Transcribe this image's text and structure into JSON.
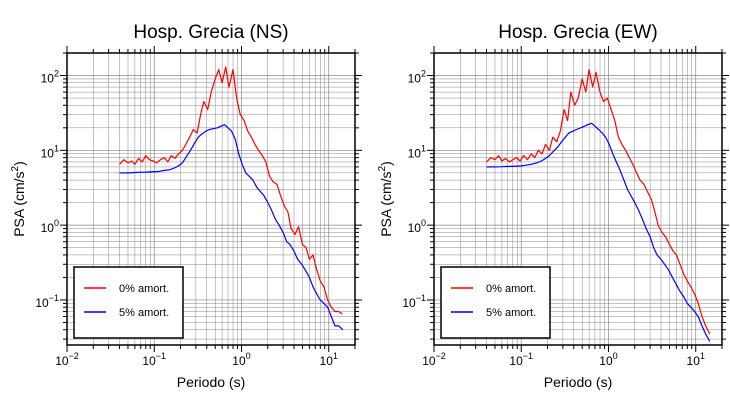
{
  "chart_data": [
    {
      "type": "line",
      "title": "Hosp. Grecia (NS)",
      "xlabel": "Periodo (s)",
      "ylabel": "PSA (cm/s²)",
      "xscale": "log",
      "yscale": "log",
      "xlim": [
        0.01,
        20
      ],
      "ylim": [
        0.025,
        200
      ],
      "grid": true,
      "x_ticks": [
        {
          "value": 0.01,
          "base": "10",
          "exp": "−2"
        },
        {
          "value": 0.1,
          "base": "10",
          "exp": "−1"
        },
        {
          "value": 1,
          "base": "10",
          "exp": "0"
        },
        {
          "value": 10,
          "base": "10",
          "exp": "1"
        }
      ],
      "y_ticks": [
        {
          "value": 0.1,
          "base": "10",
          "exp": "−1"
        },
        {
          "value": 1,
          "base": "10",
          "exp": "0"
        },
        {
          "value": 10,
          "base": "10",
          "exp": "1"
        },
        {
          "value": 100,
          "base": "10",
          "exp": "2"
        }
      ],
      "legend": {
        "position": "bottom-left"
      },
      "series": [
        {
          "name": "0% amort.",
          "color": "#ff0000",
          "x": [
            0.04,
            0.045,
            0.05,
            0.055,
            0.06,
            0.066,
            0.073,
            0.08,
            0.088,
            0.097,
            0.107,
            0.118,
            0.13,
            0.143,
            0.157,
            0.173,
            0.19,
            0.21,
            0.23,
            0.255,
            0.28,
            0.31,
            0.34,
            0.37,
            0.41,
            0.45,
            0.5,
            0.55,
            0.6,
            0.66,
            0.72,
            0.8,
            0.88,
            0.97,
            1.07,
            1.18,
            1.3,
            1.43,
            1.57,
            1.73,
            1.9,
            2.1,
            2.3,
            2.55,
            2.8,
            3.1,
            3.4,
            3.7,
            4.1,
            4.5,
            5.0,
            5.5,
            6.0,
            6.6,
            7.3,
            8.0,
            8.8,
            9.7,
            10.7,
            11.8,
            13.0,
            14.3
          ],
          "values": [
            6.5,
            7.5,
            6.8,
            7.2,
            6.5,
            7.8,
            7.0,
            8.5,
            7.5,
            7.2,
            6.8,
            7.5,
            8.0,
            7.0,
            8.5,
            7.8,
            9.0,
            10.0,
            12.0,
            15.0,
            19.0,
            17.0,
            30.0,
            45.0,
            35.0,
            60.0,
            90.0,
            120.0,
            80.0,
            130.0,
            70.0,
            120.0,
            50.0,
            30.0,
            25.0,
            18.0,
            15.0,
            12.0,
            10.0,
            8.5,
            7.0,
            4.5,
            3.8,
            3.5,
            2.5,
            1.8,
            1.5,
            0.9,
            0.75,
            0.95,
            0.55,
            0.5,
            0.35,
            0.4,
            0.25,
            0.18,
            0.15,
            0.1,
            0.08,
            0.07,
            0.07,
            0.065
          ]
        },
        {
          "name": "5% amort.",
          "color": "#0000ff",
          "x": [
            0.04,
            0.05,
            0.06,
            0.07,
            0.08,
            0.09,
            0.1,
            0.11,
            0.12,
            0.13,
            0.15,
            0.17,
            0.19,
            0.21,
            0.23,
            0.26,
            0.29,
            0.32,
            0.35,
            0.39,
            0.43,
            0.48,
            0.53,
            0.58,
            0.64,
            0.7,
            0.77,
            0.85,
            0.93,
            1.02,
            1.12,
            1.23,
            1.35,
            1.5,
            1.65,
            1.8,
            2.0,
            2.2,
            2.45,
            2.7,
            3.0,
            3.3,
            3.6,
            4.0,
            4.4,
            4.9,
            5.4,
            6.0,
            6.6,
            7.3,
            8.0,
            8.8,
            9.7,
            10.7,
            11.8,
            13.0,
            14.5
          ],
          "values": [
            5.0,
            5.0,
            5.05,
            5.1,
            5.1,
            5.15,
            5.2,
            5.2,
            5.3,
            5.4,
            5.5,
            5.8,
            6.2,
            6.8,
            8.0,
            10.0,
            12.5,
            15.0,
            16.5,
            18.0,
            19.0,
            19.5,
            20.0,
            21.0,
            22.0,
            20.0,
            18.0,
            14.0,
            9.0,
            6.5,
            5.0,
            4.5,
            4.0,
            3.2,
            2.8,
            2.5,
            2.0,
            1.6,
            1.2,
            1.0,
            0.8,
            0.6,
            0.55,
            0.45,
            0.35,
            0.3,
            0.25,
            0.2,
            0.15,
            0.12,
            0.1,
            0.09,
            0.08,
            0.06,
            0.045,
            0.045,
            0.04
          ]
        }
      ]
    },
    {
      "type": "line",
      "title": "Hosp. Grecia (EW)",
      "xlabel": "Periodo (s)",
      "ylabel": "PSA (cm/s²)",
      "xscale": "log",
      "yscale": "log",
      "xlim": [
        0.01,
        20
      ],
      "ylim": [
        0.025,
        200
      ],
      "grid": true,
      "x_ticks": [
        {
          "value": 0.01,
          "base": "10",
          "exp": "−2"
        },
        {
          "value": 0.1,
          "base": "10",
          "exp": "−1"
        },
        {
          "value": 1,
          "base": "10",
          "exp": "0"
        },
        {
          "value": 10,
          "base": "10",
          "exp": "1"
        }
      ],
      "y_ticks": [
        {
          "value": 0.1,
          "base": "10",
          "exp": "−1"
        },
        {
          "value": 1,
          "base": "10",
          "exp": "0"
        },
        {
          "value": 10,
          "base": "10",
          "exp": "1"
        },
        {
          "value": 100,
          "base": "10",
          "exp": "2"
        }
      ],
      "legend": {
        "position": "bottom-left"
      },
      "series": [
        {
          "name": "0% amort.",
          "color": "#ff0000",
          "x": [
            0.04,
            0.045,
            0.05,
            0.055,
            0.06,
            0.066,
            0.073,
            0.08,
            0.088,
            0.097,
            0.107,
            0.118,
            0.13,
            0.143,
            0.157,
            0.173,
            0.19,
            0.21,
            0.23,
            0.255,
            0.28,
            0.31,
            0.34,
            0.37,
            0.41,
            0.45,
            0.5,
            0.55,
            0.6,
            0.66,
            0.72,
            0.8,
            0.88,
            0.97,
            1.07,
            1.18,
            1.3,
            1.43,
            1.57,
            1.73,
            1.9,
            2.1,
            2.3,
            2.55,
            2.8,
            3.1,
            3.4,
            3.7,
            4.1,
            4.5,
            5.0,
            5.5,
            6.0,
            6.6,
            7.3,
            8.0,
            8.8,
            9.7,
            10.7,
            11.8,
            13.0,
            14.5
          ],
          "values": [
            7.0,
            8.0,
            7.5,
            8.5,
            7.2,
            7.8,
            7.0,
            7.5,
            8.0,
            7.2,
            8.5,
            7.5,
            9.0,
            8.0,
            10.0,
            9.0,
            12.0,
            10.0,
            15.0,
            13.0,
            18.0,
            35.0,
            25.0,
            60.0,
            40.0,
            50.0,
            90.0,
            60.0,
            120.0,
            70.0,
            110.0,
            60.0,
            45.0,
            50.0,
            35.0,
            25.0,
            15.0,
            12.0,
            10.0,
            8.0,
            6.5,
            5.0,
            4.0,
            3.5,
            2.8,
            2.2,
            1.5,
            1.0,
            0.8,
            0.7,
            0.55,
            0.45,
            0.4,
            0.3,
            0.22,
            0.18,
            0.15,
            0.12,
            0.09,
            0.06,
            0.045,
            0.035
          ]
        },
        {
          "name": "5% amort.",
          "color": "#0000ff",
          "x": [
            0.04,
            0.05,
            0.06,
            0.07,
            0.08,
            0.09,
            0.1,
            0.11,
            0.12,
            0.13,
            0.15,
            0.17,
            0.19,
            0.21,
            0.23,
            0.26,
            0.29,
            0.32,
            0.35,
            0.39,
            0.43,
            0.48,
            0.53,
            0.58,
            0.64,
            0.7,
            0.77,
            0.85,
            0.93,
            1.02,
            1.12,
            1.23,
            1.35,
            1.5,
            1.65,
            1.8,
            2.0,
            2.2,
            2.45,
            2.7,
            3.0,
            3.3,
            3.6,
            4.0,
            4.4,
            4.9,
            5.4,
            6.0,
            6.6,
            7.3,
            8.0,
            8.8,
            9.7,
            10.7,
            11.8,
            13.0,
            14.5
          ],
          "values": [
            6.0,
            6.0,
            6.05,
            6.1,
            6.1,
            6.15,
            6.2,
            6.3,
            6.4,
            6.5,
            6.8,
            7.2,
            7.8,
            8.5,
            9.5,
            11.0,
            13.0,
            15.0,
            17.0,
            18.0,
            19.0,
            20.0,
            21.0,
            22.0,
            23.0,
            21.0,
            19.0,
            17.0,
            15.0,
            12.0,
            9.0,
            7.0,
            5.5,
            4.0,
            3.0,
            2.5,
            2.0,
            1.6,
            1.2,
            0.9,
            0.7,
            0.5,
            0.4,
            0.35,
            0.3,
            0.25,
            0.2,
            0.16,
            0.13,
            0.11,
            0.09,
            0.08,
            0.07,
            0.06,
            0.045,
            0.035,
            0.028
          ]
        }
      ]
    }
  ]
}
